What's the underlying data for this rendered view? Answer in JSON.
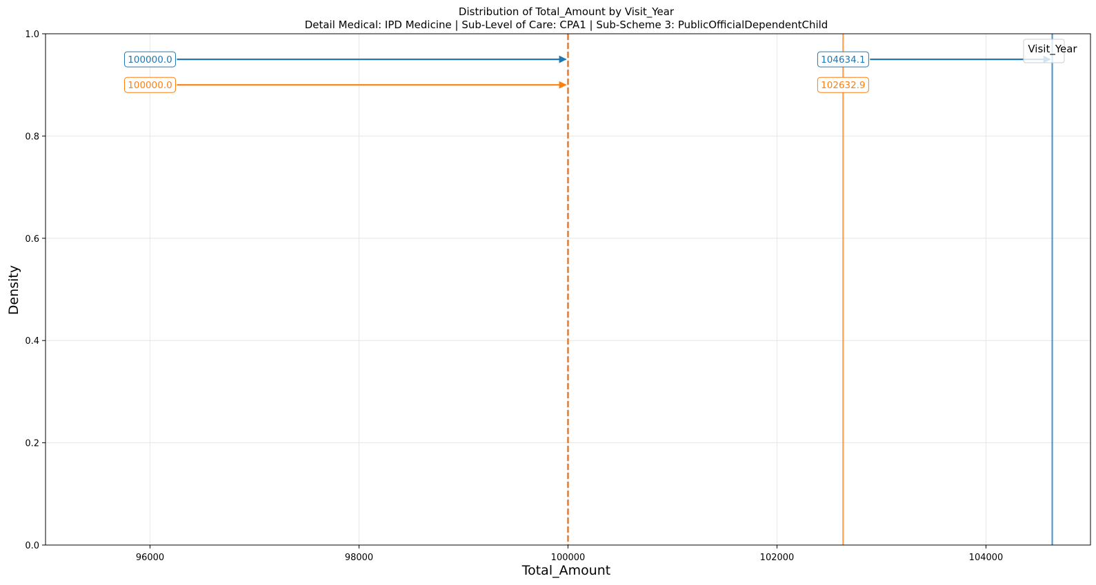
{
  "chart_data": {
    "type": "line",
    "title": "Distribution of Total_Amount by Visit_Year",
    "subtitle": "Detail Medical: IPD Medicine | Sub-Level of Care: CPA1 | Sub-Scheme 3: PublicOfficialDependentChild",
    "xlabel": "Total_Amount",
    "ylabel": "Density",
    "xlim": [
      95000,
      105000
    ],
    "ylim": [
      0.0,
      1.0
    ],
    "x_ticks": [
      96000,
      98000,
      100000,
      102000,
      104000
    ],
    "x_tick_labels": [
      "96000",
      "98000",
      "100000",
      "102000",
      "104000"
    ],
    "y_ticks": [
      0.0,
      0.2,
      0.4,
      0.6,
      0.8,
      1.0
    ],
    "y_tick_labels": [
      "0.0",
      "0.2",
      "0.4",
      "0.6",
      "0.8",
      "1.0"
    ],
    "grid": true,
    "legend": {
      "title": "Visit_Year",
      "placement": "top-right",
      "entries": []
    },
    "colors": {
      "blue": "#1f77b4",
      "orange": "#ff7f0e",
      "median_line": "#d67f3c"
    },
    "vertical_lines": [
      {
        "x": 100000,
        "style": "dashed",
        "color": "#d67f3c"
      },
      {
        "x": 102632.9,
        "style": "solid",
        "color": "#ff7f0e"
      },
      {
        "x": 104634.1,
        "style": "solid",
        "color": "#1f77b4"
      }
    ],
    "annotations": [
      {
        "label": "100000.0",
        "text_x": 96000,
        "y": 0.95,
        "target_x": 100000,
        "color": "#1f77b4"
      },
      {
        "label": "100000.0",
        "text_x": 96000,
        "y": 0.9,
        "target_x": 100000,
        "color": "#ff7f0e"
      },
      {
        "label": "104634.1",
        "text_x": 102632.9,
        "y": 0.95,
        "target_x": 104634.1,
        "color": "#1f77b4"
      },
      {
        "label": "102632.9",
        "text_x": 102632.9,
        "y": 0.9,
        "target_x": null,
        "color": "#ff7f0e"
      }
    ]
  }
}
